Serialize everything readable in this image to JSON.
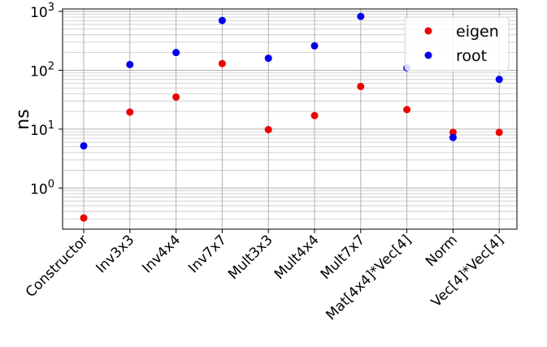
{
  "chart_data": {
    "type": "scatter",
    "scale": "log",
    "ylabel": "ns",
    "xlabel": "",
    "title": "",
    "categories": [
      "Constructor",
      "Inv3x3",
      "Inv4x4",
      "Inv7x7",
      "Mult3x3",
      "Mult4x4",
      "Mult7x7",
      "Mat[4x4]*Vec[4]",
      "Norm",
      "Vec[4]*Vec[4]"
    ],
    "y_tick_labels": [
      {
        "value": 1,
        "base": "10",
        "exp": "0"
      },
      {
        "value": 10,
        "base": "10",
        "exp": "1"
      },
      {
        "value": 100,
        "base": "10",
        "exp": "2"
      },
      {
        "value": 1000,
        "base": "10",
        "exp": "3"
      }
    ],
    "ylim": [
      0.2,
      1100
    ],
    "grid": true,
    "legend_position": "top-right",
    "series": [
      {
        "name": "eigen",
        "color": "#ee0000",
        "values": [
          0.31,
          19.5,
          35,
          130,
          9.8,
          17,
          53,
          21.5,
          8.8,
          8.8
        ]
      },
      {
        "name": "root",
        "color": "#0000ee",
        "values": [
          5.2,
          125,
          200,
          700,
          160,
          260,
          820,
          110,
          7.2,
          70
        ]
      }
    ]
  }
}
